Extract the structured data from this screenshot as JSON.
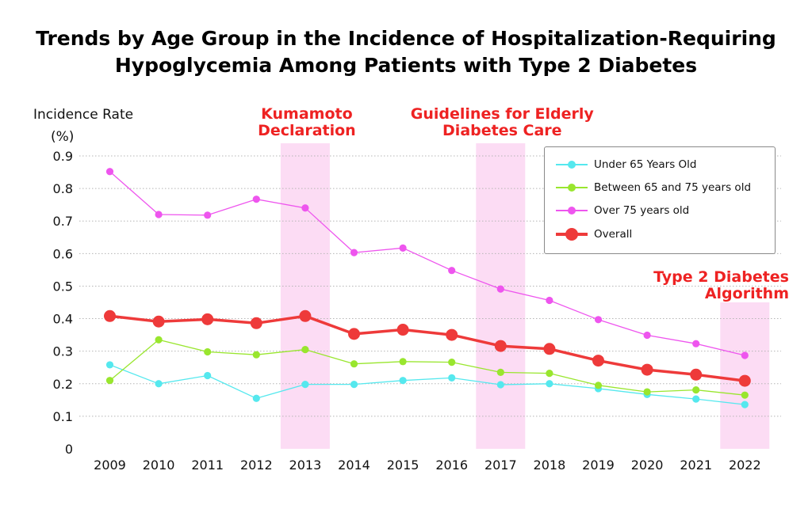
{
  "chart_data": {
    "type": "line",
    "title": [
      "Trends by Age Group in the Incidence of Hospitalization-Requiring",
      "Hypoglycemia Among Patients with Type 2 Diabetes"
    ],
    "ylabel": [
      "Incidence Rate",
      "(%)"
    ],
    "xlabel": "",
    "ylim": [
      0,
      0.9
    ],
    "yticks": [
      "0",
      "0.1",
      "0.2",
      "0.3",
      "0.4",
      "0.5",
      "0.6",
      "0.7",
      "0.8",
      "0.9"
    ],
    "grid": "horizontal dotted",
    "legend_position": "top-right",
    "categories": [
      "2009",
      "2010",
      "2011",
      "2012",
      "2013",
      "2014",
      "2015",
      "2016",
      "2017",
      "2018",
      "2019",
      "2020",
      "2021",
      "2022"
    ],
    "series": [
      {
        "name": "Under 65 Years Old",
        "color": "#55e8ee",
        "values": [
          0.258,
          0.2,
          0.225,
          0.155,
          0.198,
          0.198,
          0.21,
          0.218,
          0.197,
          0.2,
          0.185,
          0.167,
          0.153,
          0.136
        ]
      },
      {
        "name": "Between 65 and 75 years old",
        "color": "#99e62e",
        "values": [
          0.21,
          0.335,
          0.298,
          0.289,
          0.305,
          0.261,
          0.268,
          0.266,
          0.235,
          0.232,
          0.195,
          0.175,
          0.181,
          0.165
        ]
      },
      {
        "name": "Over 75 years old",
        "color": "#ee55ee",
        "values": [
          0.852,
          0.72,
          0.718,
          0.767,
          0.74,
          0.603,
          0.617,
          0.548,
          0.491,
          0.456,
          0.397,
          0.349,
          0.323,
          0.287
        ]
      },
      {
        "name": "Overall",
        "color": "#ee3a3a",
        "bold": true,
        "values": [
          0.408,
          0.391,
          0.398,
          0.386,
          0.408,
          0.353,
          0.366,
          0.35,
          0.316,
          0.307,
          0.271,
          0.243,
          0.228,
          0.209
        ]
      }
    ],
    "highlights": [
      {
        "category": "2013",
        "label": [
          "Kumamoto",
          "Declaration"
        ]
      },
      {
        "category": "2017",
        "label": [
          "Guidelines for Elderly",
          "Diabetes Care"
        ]
      },
      {
        "category": "2022",
        "label": [
          "Type 2 Diabetes",
          "Algorithm"
        ]
      }
    ],
    "highlight_color": "#fcdcf4",
    "annotation_color": "#ee2222"
  }
}
